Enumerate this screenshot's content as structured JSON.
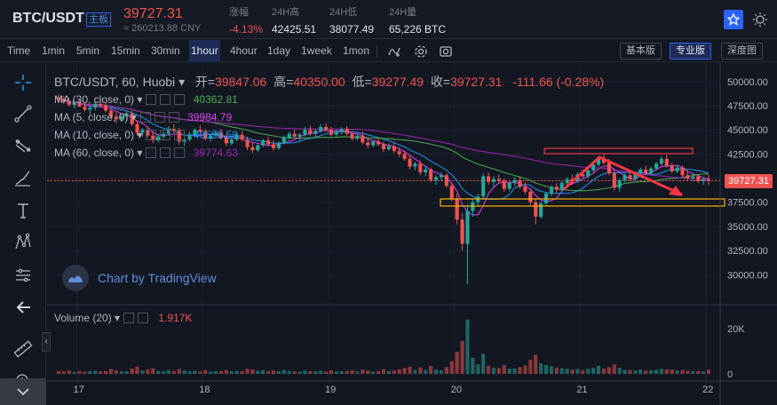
{
  "ticker": {
    "pair": "BTC/USDT",
    "board_label": "主板",
    "last_price": "39727.31",
    "cny_price": "≈ 260213.88 CNY",
    "stats": [
      {
        "label": "涨幅",
        "value": "-4.13%"
      },
      {
        "label": "24H高",
        "value": "42425.51"
      },
      {
        "label": "24H低",
        "value": "38077.49"
      },
      {
        "label": "24H量",
        "value": "65,226 BTC"
      }
    ],
    "favorite_icon": "star-icon",
    "theme_icon": "sun-icon"
  },
  "toolbar": {
    "intervals": [
      "Time",
      "1min",
      "5min",
      "15min",
      "30min",
      "1hour",
      "4hour",
      "1day",
      "1week",
      "1mon"
    ],
    "active_interval": "1hour",
    "modes": [
      "基本版",
      "专业版",
      "深度图"
    ],
    "active_mode": "专业版",
    "icons": [
      "indicators-icon",
      "settings-icon",
      "screenshot-icon"
    ]
  },
  "drawing_tools": [
    "crosshair-icon",
    "trend-line-icon",
    "fib-icon",
    "brush-icon",
    "text-icon",
    "pattern-icon",
    "measure-icon",
    "back-arrow-icon",
    "ruler-icon",
    "zoom-in-icon"
  ],
  "legend": {
    "symbol": "BTC/USDT, 60, Huobi",
    "open_label": "开=",
    "open": "39847.06",
    "high_label": "高=",
    "high": "40350.00",
    "low_label": "低=",
    "low": "39277.49",
    "close_label": "收=",
    "close": "39727.31",
    "change": "-111.66 (-0.28%)",
    "ma": [
      {
        "label": "MA (30, close, 0)",
        "value": "40362.81",
        "color": "#4caf50"
      },
      {
        "label": "MA (5, close, 0)",
        "value": "39984.79",
        "color": "#e040fb"
      },
      {
        "label": "MA (10, close, 0)",
        "value": "40558.58",
        "color": "#2196f3"
      },
      {
        "label": "MA (60, close, 0)",
        "value": "39774.63",
        "color": "#9c27b0"
      }
    ]
  },
  "watermark": "Chart by TradingView",
  "volume": {
    "label": "Volume (20)",
    "value": "1.917K"
  },
  "price_axis": [
    "50000.00",
    "47500.00",
    "45000.00",
    "42500.00",
    "40000.00",
    "37500.00",
    "35000.00",
    "32500.00",
    "30000.00"
  ],
  "price_axis_tag": "39727.31",
  "volume_axis": [
    "20K",
    "0"
  ],
  "time_axis": [
    "17",
    "18",
    "19",
    "20",
    "21",
    "22"
  ],
  "collapse_label": "‹",
  "colors": {
    "up": "#26a69a",
    "down": "#ef5350",
    "annotation_red": "#f23645",
    "annotation_yellow": "#ffb300"
  },
  "chart_data": {
    "type": "candlestick",
    "ylim": [
      28000,
      51000
    ],
    "volume_max": 25000,
    "x_ticks": [
      "17",
      "18",
      "19",
      "20",
      "21",
      "22"
    ],
    "candles": [
      [
        48400,
        48700,
        48000,
        48200
      ],
      [
        48200,
        48500,
        47700,
        47900
      ],
      [
        47900,
        48300,
        47400,
        47600
      ],
      [
        47600,
        48000,
        47200,
        47800
      ],
      [
        47800,
        48200,
        47500,
        47400
      ],
      [
        47400,
        47800,
        46900,
        47100
      ],
      [
        47100,
        47500,
        46600,
        47300
      ],
      [
        47300,
        47900,
        47000,
        47700
      ],
      [
        47700,
        48100,
        47300,
        47500
      ],
      [
        47500,
        47800,
        46800,
        47000
      ],
      [
        47000,
        47300,
        46100,
        46400
      ],
      [
        46400,
        46800,
        45700,
        46100
      ],
      [
        46100,
        46600,
        45800,
        46400
      ],
      [
        46400,
        46900,
        46000,
        46700
      ],
      [
        46700,
        47000,
        45400,
        45600
      ],
      [
        45600,
        46000,
        44400,
        44700
      ],
      [
        44700,
        45200,
        44300,
        45000
      ],
      [
        45000,
        45300,
        44200,
        44400
      ],
      [
        44400,
        44900,
        43600,
        43900
      ],
      [
        43900,
        44600,
        43700,
        44300
      ],
      [
        44300,
        44900,
        44000,
        44600
      ],
      [
        44600,
        45400,
        44400,
        45100
      ],
      [
        45100,
        45600,
        44700,
        44900
      ],
      [
        44900,
        45200,
        43500,
        43800
      ],
      [
        43800,
        44300,
        43300,
        44000
      ],
      [
        44000,
        44800,
        43800,
        44500
      ],
      [
        44500,
        45200,
        44300,
        45000
      ],
      [
        45000,
        45500,
        44600,
        44800
      ],
      [
        44800,
        45100,
        43900,
        44100
      ],
      [
        44100,
        44600,
        43800,
        44400
      ],
      [
        44400,
        45000,
        44200,
        44700
      ],
      [
        44700,
        45100,
        44000,
        44200
      ],
      [
        44200,
        44500,
        43300,
        43600
      ],
      [
        43600,
        44200,
        43400,
        44000
      ],
      [
        44000,
        44700,
        43800,
        44500
      ],
      [
        44500,
        44900,
        43800,
        44000
      ],
      [
        44000,
        44300,
        42900,
        43200
      ],
      [
        43200,
        43700,
        42600,
        42900
      ],
      [
        42900,
        43500,
        42700,
        43400
      ],
      [
        43400,
        44100,
        43200,
        43900
      ],
      [
        43900,
        44300,
        43300,
        43500
      ],
      [
        43500,
        43900,
        42800,
        43100
      ],
      [
        43100,
        43800,
        42900,
        43600
      ],
      [
        43600,
        44400,
        43500,
        44200
      ],
      [
        44200,
        44800,
        44000,
        44600
      ],
      [
        44600,
        45000,
        44100,
        44300
      ],
      [
        44300,
        44700,
        43900,
        44500
      ],
      [
        44500,
        45300,
        44300,
        45000
      ],
      [
        45000,
        45400,
        44400,
        44600
      ],
      [
        44600,
        45100,
        44200,
        44900
      ],
      [
        44900,
        45600,
        44700,
        45300
      ],
      [
        45300,
        45700,
        44800,
        45000
      ],
      [
        45000,
        45300,
        44300,
        44500
      ],
      [
        44500,
        45000,
        44300,
        44800
      ],
      [
        44800,
        45300,
        44500,
        45100
      ],
      [
        45100,
        45400,
        44400,
        44600
      ],
      [
        44600,
        44900,
        43900,
        44100
      ],
      [
        44100,
        44600,
        43900,
        44400
      ],
      [
        44400,
        44800,
        43500,
        43700
      ],
      [
        43700,
        44100,
        43100,
        43400
      ],
      [
        43400,
        43900,
        43200,
        43800
      ],
      [
        43800,
        44200,
        43300,
        43500
      ],
      [
        43500,
        43800,
        42700,
        43000
      ],
      [
        43000,
        43600,
        42800,
        43300
      ],
      [
        43300,
        43700,
        42600,
        42800
      ],
      [
        42800,
        43200,
        42200,
        42500
      ],
      [
        42500,
        42900,
        41800,
        42000
      ],
      [
        42000,
        42400,
        40900,
        41200
      ],
      [
        41200,
        41700,
        40800,
        41500
      ],
      [
        41500,
        41800,
        40300,
        40600
      ],
      [
        40600,
        41200,
        40200,
        40900
      ],
      [
        40900,
        41100,
        39600,
        39800
      ],
      [
        39800,
        40300,
        39300,
        40100
      ],
      [
        40100,
        40600,
        39700,
        40300
      ],
      [
        40300,
        40500,
        39000,
        39200
      ],
      [
        39200,
        39500,
        37600,
        37900
      ],
      [
        37900,
        38400,
        35200,
        35700
      ],
      [
        35700,
        36400,
        32500,
        33200
      ],
      [
        33200,
        37300,
        29000,
        36600
      ],
      [
        36600,
        37900,
        36000,
        37500
      ],
      [
        37500,
        38400,
        37000,
        38100
      ],
      [
        38100,
        40500,
        37900,
        40200
      ],
      [
        40200,
        40600,
        39300,
        39600
      ],
      [
        39600,
        40200,
        39000,
        39900
      ],
      [
        39900,
        40400,
        39400,
        39700
      ],
      [
        39700,
        40000,
        38600,
        38900
      ],
      [
        38900,
        39700,
        38600,
        39500
      ],
      [
        39500,
        40100,
        39200,
        39800
      ],
      [
        39800,
        40200,
        38900,
        39100
      ],
      [
        39100,
        39600,
        38300,
        38600
      ],
      [
        38600,
        38900,
        37200,
        37500
      ],
      [
        37500,
        37900,
        35200,
        36000
      ],
      [
        36000,
        37600,
        35800,
        37400
      ],
      [
        37400,
        38600,
        37100,
        38400
      ],
      [
        38400,
        39300,
        38100,
        39100
      ],
      [
        39100,
        39500,
        38500,
        38800
      ],
      [
        38800,
        39700,
        38600,
        39500
      ],
      [
        39500,
        40100,
        39200,
        39900
      ],
      [
        39900,
        40400,
        39500,
        39700
      ],
      [
        39700,
        40600,
        39500,
        40400
      ],
      [
        40400,
        40900,
        40000,
        40200
      ],
      [
        40200,
        41000,
        40000,
        40800
      ],
      [
        40800,
        41600,
        40600,
        41400
      ],
      [
        41400,
        42300,
        41200,
        42100
      ],
      [
        42100,
        42600,
        41400,
        41600
      ],
      [
        41600,
        42000,
        40300,
        40500
      ],
      [
        40500,
        40900,
        38700,
        39000
      ],
      [
        39000,
        40000,
        38600,
        39800
      ],
      [
        39800,
        40500,
        39600,
        40300
      ],
      [
        40300,
        40800,
        39700,
        39900
      ],
      [
        39900,
        40700,
        39800,
        40500
      ],
      [
        40500,
        41100,
        40200,
        40900
      ],
      [
        40900,
        41300,
        40300,
        40500
      ],
      [
        40500,
        41200,
        40400,
        41000
      ],
      [
        41000,
        41700,
        40800,
        41500
      ],
      [
        41500,
        42300,
        41300,
        42000
      ],
      [
        42000,
        42400,
        41100,
        41300
      ],
      [
        41300,
        41600,
        40500,
        40700
      ],
      [
        40700,
        41300,
        40500,
        41100
      ],
      [
        41100,
        41300,
        40100,
        40300
      ],
      [
        40300,
        40800,
        39800,
        40000
      ],
      [
        40000,
        40500,
        39700,
        40200
      ],
      [
        40200,
        40400,
        39500,
        39700
      ],
      [
        39700,
        40100,
        39300,
        39900
      ],
      [
        39900,
        40350,
        39280,
        39727
      ]
    ],
    "volumes": [
      1200,
      1100,
      1500,
      900,
      1300,
      1000,
      1200,
      1400,
      1100,
      1300,
      2100,
      1600,
      1200,
      1100,
      2400,
      3200,
      1500,
      2000,
      2600,
      1400,
      1200,
      1700,
      1300,
      2200,
      1500,
      1200,
      1400,
      1100,
      1600,
      1000,
      1200,
      1300,
      1700,
      1100,
      1300,
      1200,
      2300,
      2000,
      1400,
      1600,
      1100,
      1500,
      1200,
      1700,
      1300,
      1100,
      1000,
      1500,
      1300,
      1200,
      1400,
      1100,
      1500,
      1000,
      1200,
      1300,
      1600,
      1100,
      1800,
      1500,
      1000,
      1200,
      2100,
      1300,
      1500,
      2000,
      2600,
      3200,
      1700,
      2900,
      1800,
      3500,
      1900,
      1600,
      3000,
      5600,
      9800,
      14500,
      24000,
      7200,
      4200,
      8800,
      3600,
      2800,
      2600,
      3900,
      2300,
      2400,
      3000,
      3700,
      6200,
      8400,
      4600,
      3900,
      3400,
      2700,
      2500,
      2300,
      1900,
      2200,
      1700,
      2300,
      2600,
      3600,
      2400,
      2900,
      4200,
      2700,
      1800,
      1700,
      1500,
      1900,
      1400,
      1600,
      1800,
      2200,
      2000,
      1900,
      1500,
      1700,
      1400,
      1300,
      1200,
      1100,
      1917
    ],
    "ma_series": [
      {
        "name": "MA (5, close, 0)",
        "color": "#e040fb"
      },
      {
        "name": "MA (10, close, 0)",
        "color": "#2196f3"
      },
      {
        "name": "MA (30, close, 0)",
        "color": "#4caf50"
      },
      {
        "name": "MA (60, close, 0)",
        "color": "#9c27b0"
      }
    ]
  }
}
